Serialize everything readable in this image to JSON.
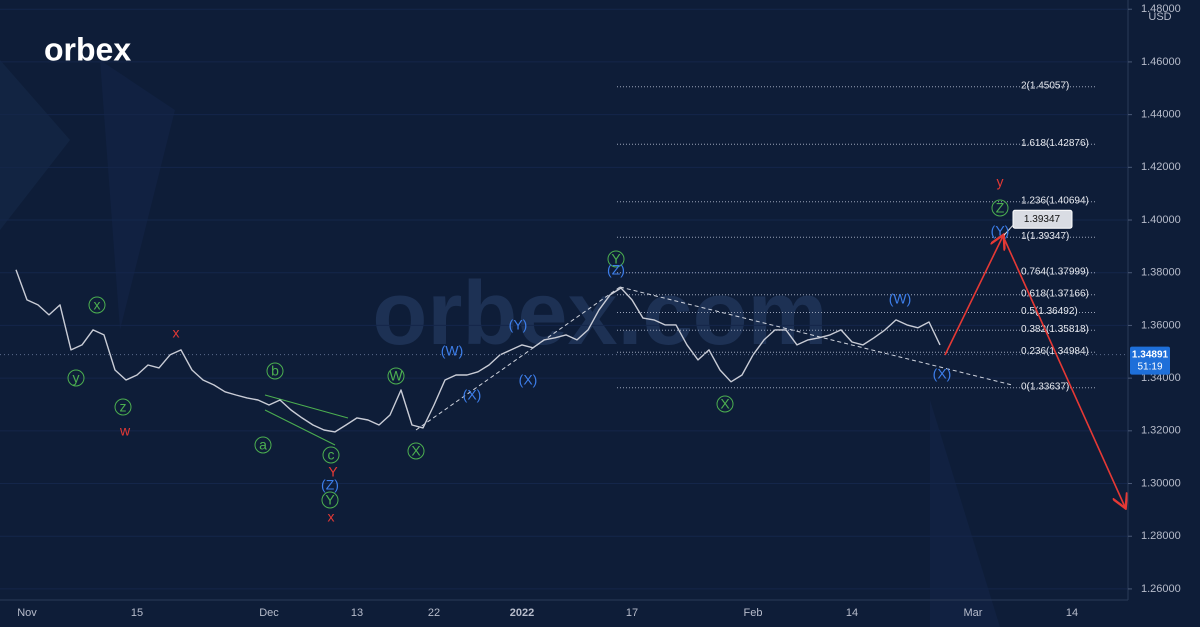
{
  "logo": "orbex",
  "watermark": "orbex.com",
  "chart_data": {
    "type": "line",
    "categories": [
      null,
      "Nov",
      null,
      null,
      null,
      null,
      null,
      null,
      null,
      null,
      null,
      "15",
      null,
      null,
      null,
      null,
      null,
      null,
      null,
      null,
      null,
      null,
      null,
      "Dec",
      null,
      null,
      null,
      null,
      null,
      null,
      null,
      "13",
      null,
      null,
      null,
      null,
      null,
      null,
      "22",
      null,
      null,
      null,
      null,
      null,
      null,
      null,
      "2022",
      null,
      null,
      null,
      null,
      null,
      null,
      null,
      null,
      null,
      "17",
      null,
      null,
      null,
      null,
      null,
      null,
      null,
      null,
      null,
      null,
      "Feb",
      null,
      null,
      null,
      null,
      null,
      null,
      null,
      null,
      "14",
      null,
      null,
      null,
      null,
      null,
      null,
      null,
      null,
      null,
      null,
      "Mar",
      null,
      null,
      null,
      null,
      null,
      null,
      null,
      null,
      "14",
      null,
      null,
      null,
      null,
      null
    ],
    "values": [
      1.3811,
      1.3697,
      1.3678,
      1.364,
      1.3678,
      1.3507,
      1.3526,
      1.3583,
      1.3564,
      1.3431,
      1.3393,
      1.3412,
      1.345,
      1.3439,
      1.3488,
      1.3507,
      1.3431,
      1.3393,
      1.3374,
      1.3348,
      1.3336,
      1.3325,
      1.3317,
      1.3298,
      1.3317,
      1.3279,
      1.3249,
      1.3222,
      1.3203,
      1.3196,
      1.3222,
      1.3249,
      1.3241,
      1.3222,
      1.326,
      1.3355,
      1.3222,
      1.3211,
      1.3298,
      1.3393,
      1.3412,
      1.3412,
      1.3424,
      1.345,
      1.3488,
      1.3507,
      1.3526,
      1.3515,
      1.3545,
      1.3553,
      1.3564,
      1.3545,
      1.3583,
      1.3659,
      1.3716,
      1.3742,
      1.3697,
      1.3628,
      1.3621,
      1.3602,
      1.3602,
      1.3526,
      1.3469,
      1.3507,
      1.3431,
      1.3386,
      1.3412,
      1.3488,
      1.3545,
      1.3583,
      1.3583,
      1.3526,
      1.3545,
      1.3553,
      1.3564,
      1.3583,
      1.3537,
      1.3526,
      1.3553,
      1.3583,
      1.3621,
      1.3602,
      1.3591,
      1.3613,
      1.3526,
      null,
      null,
      null,
      null,
      null,
      null,
      null,
      null,
      null,
      null,
      null,
      null,
      null,
      null,
      null,
      null,
      null
    ],
    "color": "#c9ccd6",
    "ylim": [
      1.2558,
      1.4835
    ],
    "yticks": [
      {
        "value": 1.26,
        "label": "1.26000"
      },
      {
        "value": 1.28,
        "label": "1.28000"
      },
      {
        "value": 1.3,
        "label": "1.30000"
      },
      {
        "value": 1.32,
        "label": "1.32000"
      },
      {
        "value": 1.34,
        "label": "1.34000"
      },
      {
        "value": 1.36,
        "label": "1.36000"
      },
      {
        "value": 1.38,
        "label": "1.38000"
      },
      {
        "value": 1.4,
        "label": "1.40000"
      },
      {
        "value": 1.42,
        "label": "1.42000"
      },
      {
        "value": 1.44,
        "label": "1.44000"
      },
      {
        "value": 1.46,
        "label": "1.46000"
      },
      {
        "value": 1.48,
        "label": "1.48000"
      }
    ],
    "unit": "USD",
    "last_price": 1.34891,
    "countdown": "51:19",
    "target": 1.39347,
    "fib_levels": [
      {
        "value": 1.45057,
        "label": "2(1.45057)"
      },
      {
        "value": 1.42876,
        "label": "1.618(1.42876)"
      },
      {
        "value": 1.40694,
        "label": "1.236(1.40694)"
      },
      {
        "value": 1.39347,
        "label": "1(1.39347)"
      },
      {
        "value": 1.37999,
        "label": "0.764(1.37999)"
      },
      {
        "value": 1.37166,
        "label": "0.618(1.37166)"
      },
      {
        "value": 1.36492,
        "label": "0.5(1.36492)"
      },
      {
        "value": 1.35818,
        "label": "0.382(1.35818)"
      },
      {
        "value": 1.34984,
        "label": "0.236(1.34984)"
      },
      {
        "value": 1.33637,
        "label": "0(1.33637)"
      }
    ],
    "annotations": [
      {
        "text": "y",
        "color": "#4caf50"
      },
      {
        "text": "x",
        "color": "#4caf50"
      },
      {
        "text": "z",
        "color": "#4caf50"
      },
      {
        "text": "b",
        "color": "#4caf50"
      },
      {
        "text": "a",
        "color": "#4caf50"
      },
      {
        "text": "c",
        "color": "#4caf50"
      },
      {
        "text": "W",
        "color": "#4caf50"
      },
      {
        "text": "X",
        "color": "#4caf50"
      },
      {
        "text": "Y",
        "color": "#4caf50"
      },
      {
        "text": "Y",
        "color": "#4caf50"
      },
      {
        "text": "X",
        "color": "#4caf50"
      },
      {
        "text": "Z",
        "color": "#4caf50"
      },
      {
        "text": "(Z)",
        "color": "#3d7eea"
      },
      {
        "text": "(W)",
        "color": "#3d7eea"
      },
      {
        "text": "(X)",
        "color": "#3d7eea"
      },
      {
        "text": "(Y)",
        "color": "#3d7eea"
      },
      {
        "text": "(X)",
        "color": "#3d7eea"
      },
      {
        "text": "(Z)",
        "color": "#3d7eea"
      },
      {
        "text": "(W)",
        "color": "#3d7eea"
      },
      {
        "text": "(X)",
        "color": "#3d7eea"
      },
      {
        "text": "(Y)",
        "color": "#3d7eea"
      },
      {
        "text": "w",
        "color": "#e53935"
      },
      {
        "text": "x",
        "color": "#e53935"
      },
      {
        "text": "Y",
        "color": "#e53935"
      },
      {
        "text": "x",
        "color": "#e53935"
      },
      {
        "text": "y",
        "color": "#e53935"
      }
    ]
  }
}
